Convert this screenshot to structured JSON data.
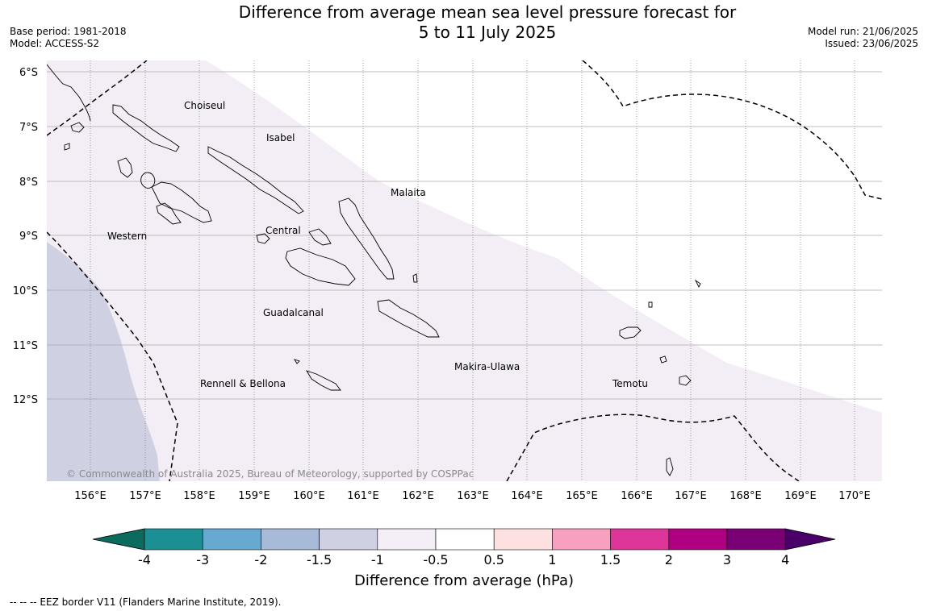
{
  "header": {
    "title_line1": "Difference from average mean sea level pressure forecast for",
    "title_line2": "5 to 11 July 2025",
    "base_period": "Base period: 1981-2018",
    "model": "Model: ACCESS-S2",
    "model_run": "Model run: 21/06/2025",
    "issued": "Issued: 23/06/2025"
  },
  "map": {
    "lat_labels": [
      "6°S",
      "7°S",
      "8°S",
      "9°S",
      "10°S",
      "11°S",
      "12°S"
    ],
    "lat_values": [
      -6,
      -7,
      -8,
      -9,
      -10,
      -11,
      -12
    ],
    "lon_labels": [
      "156°E",
      "157°E",
      "158°E",
      "159°E",
      "160°E",
      "161°E",
      "162°E",
      "163°E",
      "164°E",
      "165°E",
      "166°E",
      "167°E",
      "168°E",
      "169°E",
      "170°E"
    ],
    "lon_values": [
      156,
      157,
      158,
      159,
      160,
      161,
      162,
      163,
      164,
      165,
      166,
      167,
      168,
      169,
      170
    ],
    "extent": {
      "lon": [
        155.2,
        170.5
      ],
      "lat": [
        -13.5,
        -5.8
      ]
    },
    "provinces": [
      {
        "name": "Choiseul",
        "lon": 157.2,
        "lat": -6.6
      },
      {
        "name": "Isabel",
        "lon": 158.9,
        "lat": -7.2
      },
      {
        "name": "Malaita",
        "lon": 161.5,
        "lat": -8.2
      },
      {
        "name": "Western",
        "lon": 156.3,
        "lat": -9.0
      },
      {
        "name": "Central",
        "lon": 159.2,
        "lat": -8.9
      },
      {
        "name": "Guadalcanal",
        "lon": 159.1,
        "lat": -10.4
      },
      {
        "name": "Makira-Ulawa",
        "lon": 162.6,
        "lat": -11.4
      },
      {
        "name": "Rennell & Bellona",
        "lon": 158.0,
        "lat": -11.7
      },
      {
        "name": "Temotu",
        "lon": 165.6,
        "lat": -11.7
      }
    ],
    "copyright": "© Commonwealth of Australia 2025, Bureau of Meteorology, supported by COSPPac",
    "colors": {
      "band_-1.5_-1": "#cfd1e3",
      "band_-1_-0.5": "#f3edf6",
      "land_outline": "#000000"
    }
  },
  "colorbar": {
    "ticks": [
      "-4",
      "-3",
      "-2",
      "-1.5",
      "-1",
      "-0.5",
      "0.5",
      "1",
      "1.5",
      "2",
      "3",
      "4"
    ],
    "colors": [
      "#0b6b5e",
      "#1c8f95",
      "#68a9d1",
      "#a7bad8",
      "#cfd1e3",
      "#f3edf6",
      "#ffffff",
      "#fde0e0",
      "#f8a0bf",
      "#dc3499",
      "#ae0080",
      "#7a0076",
      "#4a0068"
    ],
    "label": "Difference from average (hPa)"
  },
  "footer": {
    "legend_text": "--  --  -- EEZ border V11 (Flanders Marine Institute, 2019)."
  }
}
